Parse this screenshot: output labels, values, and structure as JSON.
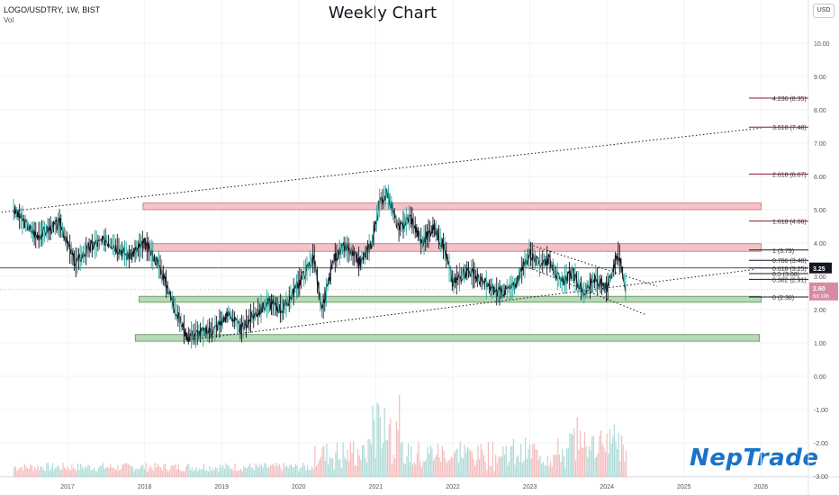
{
  "header": {
    "symbol": "LOGO/USDTRY, 1W, BIST",
    "volume_label": "Vol",
    "title": "Weekly Chart",
    "currency": "USD"
  },
  "watermark": {
    "text": "NepTrade"
  },
  "colors": {
    "candle_up": "#26a69a",
    "candle_down": "#131722",
    "resistance_zone": "#f4c2c7",
    "support_zone": "#b7d9b5",
    "fib_line": "#8b1a2b",
    "current_price_badge": "#d78ba3",
    "brand": "#1a73c9"
  },
  "chart_data": {
    "type": "line",
    "title": "Weekly Chart",
    "xlabel": "",
    "ylabel": "",
    "x_ticks": [
      "2017",
      "2018",
      "2019",
      "2020",
      "2021",
      "2022",
      "2023",
      "2024",
      "2025",
      "2026"
    ],
    "y_ticks": [
      "10.00",
      "9.00",
      "8.00",
      "7.00",
      "6.00",
      "5.00",
      "4.00",
      "3.00",
      "2.00",
      "1.00",
      "0.00",
      "-1.00",
      "-2.00",
      "-3.00"
    ],
    "ylim": [
      -3,
      11
    ],
    "series": [
      {
        "values_x": [
          2016.3,
          2016.6,
          2016.9,
          2017.1,
          2017.3,
          2017.5,
          2017.8,
          2018.0,
          2018.2,
          2018.4,
          2018.55,
          2018.7,
          2018.9,
          2019.1,
          2019.25,
          2019.4,
          2019.6,
          2019.8,
          2020.0,
          2020.2,
          2020.3,
          2020.45,
          2020.6,
          2020.8,
          2020.95,
          2021.05,
          2021.15,
          2021.3,
          2021.45,
          2021.6,
          2021.75,
          2021.9,
          2022.0,
          2022.2,
          2022.4,
          2022.6,
          2022.8,
          2023.0,
          2023.1,
          2023.25,
          2023.4,
          2023.55,
          2023.7,
          2023.85,
          2024.0,
          2024.15,
          2024.25
        ],
        "values_y": [
          5.0,
          4.2,
          4.6,
          3.4,
          3.9,
          4.1,
          3.6,
          4.0,
          3.3,
          2.0,
          1.2,
          1.3,
          1.4,
          1.9,
          1.4,
          1.8,
          2.2,
          2.0,
          2.8,
          3.6,
          1.9,
          3.5,
          3.9,
          3.4,
          4.0,
          5.2,
          5.5,
          4.4,
          4.8,
          4.0,
          4.5,
          3.8,
          2.8,
          3.2,
          2.8,
          2.5,
          2.7,
          3.7,
          3.4,
          3.5,
          2.8,
          3.1,
          2.5,
          2.9,
          2.6,
          3.7,
          2.6
        ]
      }
    ],
    "current_price": "2.60",
    "current_countdown": "6d 19h",
    "ref_price": "3.25",
    "fib_levels": [
      {
        "label": "4.236 (8.35)",
        "value": 8.35
      },
      {
        "label": "3.618 (7.48)",
        "value": 7.48
      },
      {
        "label": "2.618 (6.07)",
        "value": 6.07
      },
      {
        "label": "1.618 (4.66)",
        "value": 4.66
      },
      {
        "label": "1 (3.79)",
        "value": 3.79
      },
      {
        "label": "0.786 (3.48)",
        "value": 3.48
      },
      {
        "label": "0.618 (3.25)",
        "value": 3.25
      },
      {
        "label": "0.5 (3.08)",
        "value": 3.08
      },
      {
        "label": "0.382 (2.91)",
        "value": 2.91
      },
      {
        "label": "0 (2.38)",
        "value": 2.38
      }
    ],
    "zones": [
      {
        "kind": "resistance",
        "from_year": 2017.98,
        "to_year": 2026.0,
        "low": 5.0,
        "high": 5.2
      },
      {
        "kind": "resistance",
        "from_year": 2017.98,
        "to_year": 2026.0,
        "low": 3.75,
        "high": 3.98
      },
      {
        "kind": "support",
        "from_year": 2017.93,
        "to_year": 2026.0,
        "low": 2.22,
        "high": 2.4
      },
      {
        "kind": "support",
        "from_year": 2017.88,
        "to_year": 2025.98,
        "low": 1.05,
        "high": 1.25
      }
    ],
    "trendlines": [
      {
        "x1": 2016.05,
        "y1": 4.9,
        "x2": 2026.0,
        "y2": 7.45
      },
      {
        "x1": 2018.6,
        "y1": 1.1,
        "x2": 2025.9,
        "y2": 3.2
      },
      {
        "x1": 2023.0,
        "y1": 3.95,
        "x2": 2024.65,
        "y2": 2.7
      },
      {
        "x1": 2023.0,
        "y1": 3.25,
        "x2": 2024.5,
        "y2": 1.85
      }
    ]
  }
}
